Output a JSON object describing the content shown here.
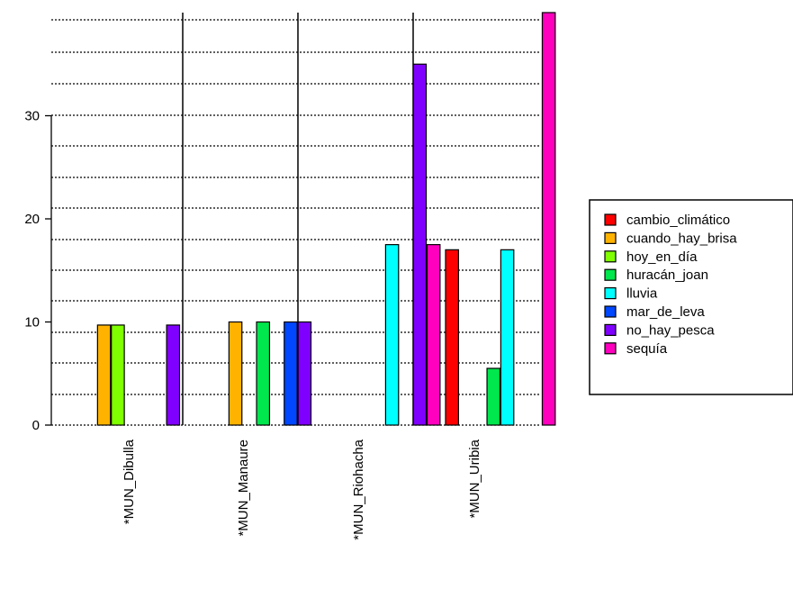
{
  "chart_data": {
    "type": "bar",
    "title": "",
    "xlabel": "",
    "ylabel": "",
    "ylim": [
      0,
      40
    ],
    "yticks": [
      0,
      10,
      20,
      30
    ],
    "grid": "horizontal dotted",
    "legend": "right",
    "categories": [
      "*MUN_Dibulla",
      "*MUN_Manaure",
      "*MUN_Riohacha",
      "*MUN_Uribia"
    ],
    "series": [
      {
        "name": "cambio_climático",
        "color": "#FF0000",
        "values": [
          0,
          0,
          0,
          17
        ]
      },
      {
        "name": "cuando_hay_brisa",
        "color": "#FFB300",
        "values": [
          9.7,
          10,
          0,
          0
        ]
      },
      {
        "name": "hoy_en_día",
        "color": "#80FF00",
        "values": [
          9.7,
          0,
          0,
          0
        ]
      },
      {
        "name": "huracán_joan",
        "color": "#00E64D",
        "values": [
          0,
          10,
          0,
          5.5
        ]
      },
      {
        "name": "lluvia",
        "color": "#00FFFF",
        "values": [
          0,
          0,
          17.5,
          17
        ]
      },
      {
        "name": "mar_de_leva",
        "color": "#0047FF",
        "values": [
          0,
          10,
          0,
          0
        ]
      },
      {
        "name": "no_hay_pesca",
        "color": "#8000FF",
        "values": [
          9.7,
          10,
          35,
          0
        ]
      },
      {
        "name": "sequía",
        "color": "#FF00BF",
        "values": [
          0,
          0,
          17.5,
          40
        ]
      }
    ]
  }
}
